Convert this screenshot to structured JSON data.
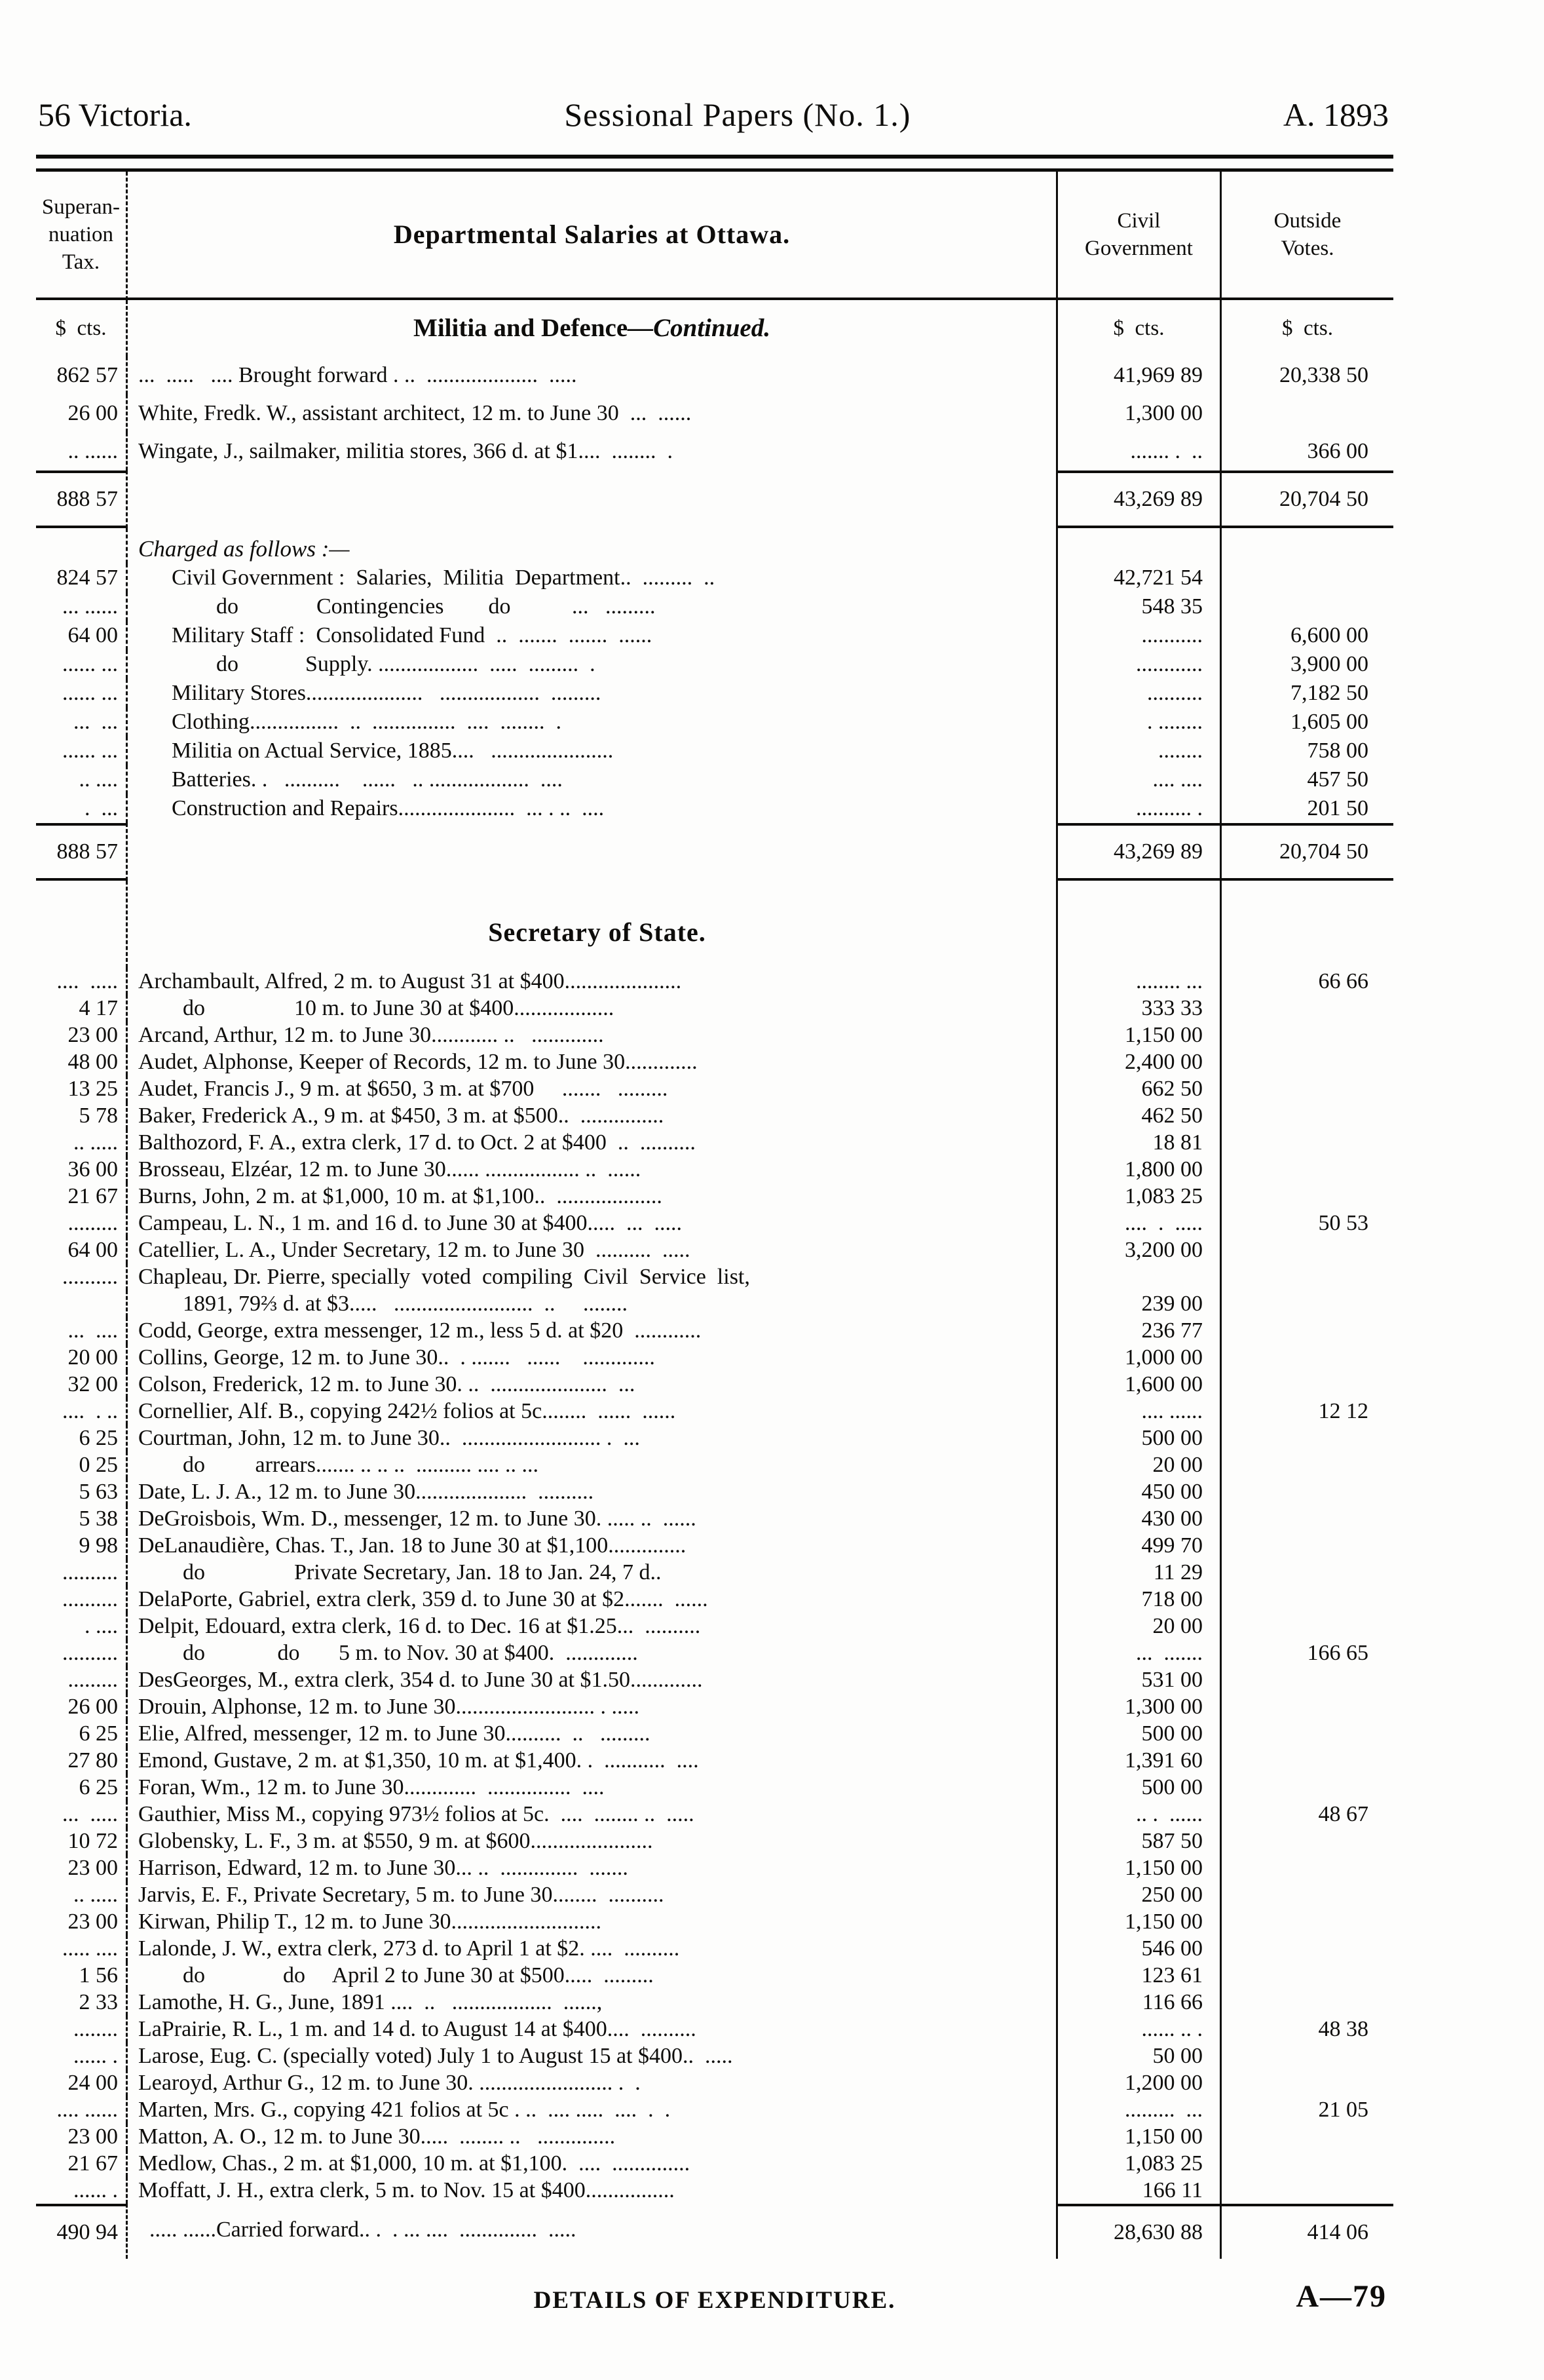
{
  "page": {
    "header_left": "56 Victoria.",
    "header_center": "Sessional Papers (No. 1.)",
    "header_right": "A. 1893",
    "footer_center": "DETAILS OF EXPENDITURE.",
    "footer_right": "A—79"
  },
  "colors": {
    "ink": "#0e0d0b",
    "paper": "#fdfdfc"
  },
  "ledger": {
    "columns": {
      "sup": "Superan-\nnuation\nTax.",
      "desc": "Departmental Salaries at Ottawa.",
      "civil": "Civil\nGovernment",
      "out": "Outside\nVotes."
    },
    "sections": [
      {
        "cls": "mrow",
        "rows": [
          {
            "t": "subhead",
            "s": "$  cts.",
            "d": "Militia and Defence",
            "d2": "—Continued.",
            "c": "$  cts.",
            "o": "$  cts."
          },
          {
            "t": "data",
            "s": "862 57",
            "d": "...  .....   .... Brought forward . ..  ....................  .....",
            "c": "41,969 89",
            "o": "20,338 50"
          },
          {
            "t": "data",
            "s": "26 00",
            "d": "White, Fredk. W., assistant architect, 12 m. to June 30  ...  ......",
            "c": "1,300 00",
            "o": ""
          },
          {
            "t": "data",
            "s": ".. ......",
            "d": "Wingate, J., sailmaker, militia stores, 366 d. at $1....  ........  .",
            "c": "....... .  ..",
            "o": "366 00"
          },
          {
            "t": "total",
            "end": true,
            "s": "888 57",
            "d": "",
            "c": "43,269 89",
            "o": "20,704 50"
          }
        ]
      },
      {
        "cls": "crow",
        "rows": [
          {
            "t": "note",
            "s": "",
            "d": "Charged as follows :—",
            "c": "",
            "o": ""
          },
          {
            "t": "data",
            "s": "824 57",
            "d": "      Civil Government :  Salaries,  Militia  Department..  .........  ..",
            "c": "42,721 54",
            "o": ""
          },
          {
            "t": "data",
            "s": "... ......",
            "d": "              do              Contingencies        do           ...   .........",
            "c": "548 35",
            "o": ""
          },
          {
            "t": "data",
            "s": "64 00",
            "d": "      Military Staff :  Consolidated Fund  ..  .......  .......  ......",
            "c": "...........",
            "o": "6,600 00"
          },
          {
            "t": "data",
            "s": "...... ...",
            "d": "              do            Supply. ..................  .....  .........  .",
            "c": "............",
            "o": "3,900 00"
          },
          {
            "t": "data",
            "s": "...... ...",
            "d": "      Military Stores.....................   ..................  .........",
            "c": "..........",
            "o": "7,182 50"
          },
          {
            "t": "data",
            "s": "...  ...",
            "d": "      Clothing................  ..  ...............  ....  ........  .",
            "c": ". ........",
            "o": "1,605 00"
          },
          {
            "t": "data",
            "s": "...... ...",
            "d": "      Militia on Actual Service, 1885....   ......................",
            "c": "........",
            "o": "758 00"
          },
          {
            "t": "data",
            "s": ".. ....",
            "d": "      Batteries. .   ..........    ......   .. ..................  ....",
            "c": ".... ....",
            "o": "457 50"
          },
          {
            "t": "data",
            "s": ".  ...",
            "d": "      Construction and Repairs.....................  ... . ..  ....",
            "c": ".......... .",
            "o": "201 50"
          },
          {
            "t": "total",
            "end": true,
            "s": "888 57",
            "d": "",
            "c": "43,269 89",
            "o": "20,704 50"
          }
        ]
      },
      {
        "cls": "srow",
        "rows": [
          {
            "t": "title",
            "s": "",
            "d": "Secretary of State.",
            "c": "",
            "o": ""
          },
          {
            "t": "data",
            "s": "....  .....",
            "d": "Archambault, Alfred, 2 m. to August 31 at $400.....................",
            "c": "........ ...",
            "o": "66 66"
          },
          {
            "t": "data",
            "s": "4 17",
            "d": "        do                10 m. to June 30 at $400..................",
            "c": "333 33",
            "o": ""
          },
          {
            "t": "data",
            "s": "23 00",
            "d": "Arcand, Arthur, 12 m. to June 30............ ..   .............",
            "c": "1,150 00",
            "o": ""
          },
          {
            "t": "data",
            "s": "48 00",
            "d": "Audet, Alphonse, Keeper of Records, 12 m. to June 30.............",
            "c": "2,400 00",
            "o": ""
          },
          {
            "t": "data",
            "s": "13 25",
            "d": "Audet, Francis J., 9 m. at $650, 3 m. at $700     .......   .........",
            "c": "662 50",
            "o": ""
          },
          {
            "t": "data",
            "s": "5 78",
            "d": "Baker, Frederick A., 9 m. at $450, 3 m. at $500..  ...............",
            "c": "462 50",
            "o": ""
          },
          {
            "t": "data",
            "s": ".. .....",
            "d": "Balthozord, F. A., extra clerk, 17 d. to Oct. 2 at $400  ..  ..........",
            "c": "18 81",
            "o": ""
          },
          {
            "t": "data",
            "s": "36 00",
            "d": "Brosseau, Elzéar, 12 m. to June 30...... ................. ..  ......",
            "c": "1,800 00",
            "o": ""
          },
          {
            "t": "data",
            "s": "21 67",
            "d": "Burns, John, 2 m. at $1,000, 10 m. at $1,100..  ...................",
            "c": "1,083 25",
            "o": ""
          },
          {
            "t": "data",
            "s": ".........",
            "d": "Campeau, L. N., 1 m. and 16 d. to June 30 at $400.....  ...  .....",
            "c": "....  .  .....",
            "o": "50 53"
          },
          {
            "t": "data",
            "s": "64 00",
            "d": "Catellier, L. A., Under Secretary, 12 m. to June 30  ..........  .....",
            "c": "3,200 00",
            "o": ""
          },
          {
            "t": "data",
            "s": "..........",
            "d": "Chapleau, Dr. Pierre, specially  voted  compiling  Civil  Service  list,",
            "c": "",
            "o": ""
          },
          {
            "t": "data",
            "s": "",
            "d": "        1891, 79⅔ d. at $3.....   .........................  ..     ........",
            "c": "239 00",
            "o": ""
          },
          {
            "t": "data",
            "s": "...  ....",
            "d": "Codd, George, extra messenger, 12 m., less 5 d. at $20  ............",
            "c": "236 77",
            "o": ""
          },
          {
            "t": "data",
            "s": "20 00",
            "d": "Collins, George, 12 m. to June 30..  . .......   ......    .............",
            "c": "1,000 00",
            "o": ""
          },
          {
            "t": "data",
            "s": "32 00",
            "d": "Colson, Frederick, 12 m. to June 30. ..  .....................  ...",
            "c": "1,600 00",
            "o": ""
          },
          {
            "t": "data",
            "s": "....  . ..",
            "d": "Cornellier, Alf. B., copying 242½ folios at 5c........  ......  ......",
            "c": ".... ......",
            "o": "12 12"
          },
          {
            "t": "data",
            "s": "6 25",
            "d": "Courtman, John, 12 m. to June 30..  ......................... .  ...",
            "c": "500 00",
            "o": ""
          },
          {
            "t": "data",
            "s": "0 25",
            "d": "        do         arrears....... .. .. ..  .......... .... .. ...",
            "c": "20 00",
            "o": ""
          },
          {
            "t": "data",
            "s": "5 63",
            "d": "Date, L. J. A., 12 m. to June 30....................  ..........",
            "c": "450 00",
            "o": ""
          },
          {
            "t": "data",
            "s": "5 38",
            "d": "DeGroisbois, Wm. D., messenger, 12 m. to June 30. ..... ..  ......",
            "c": "430 00",
            "o": ""
          },
          {
            "t": "data",
            "s": "9 98",
            "d": "DeLanaudière, Chas. T., Jan. 18 to June 30 at $1,100..............",
            "c": "499 70",
            "o": ""
          },
          {
            "t": "data",
            "s": "..........",
            "d": "        do                Private Secretary, Jan. 18 to Jan. 24, 7 d..",
            "c": "11 29",
            "o": ""
          },
          {
            "t": "data",
            "s": "..........",
            "d": "DelaPorte, Gabriel, extra clerk, 359 d. to June 30 at $2.......  ......",
            "c": "718 00",
            "o": ""
          },
          {
            "t": "data",
            "s": ". ....",
            "d": "Delpit, Edouard, extra clerk, 16 d. to Dec. 16 at $1.25...  ..........",
            "c": "20 00",
            "o": ""
          },
          {
            "t": "data",
            "s": "..........",
            "d": "        do             do       5 m. to Nov. 30 at $400.  .............",
            "c": "...  .......",
            "o": "166 65"
          },
          {
            "t": "data",
            "s": ".........",
            "d": "DesGeorges, M., extra clerk, 354 d. to June 30 at $1.50.............",
            "c": "531 00",
            "o": ""
          },
          {
            "t": "data",
            "s": "26 00",
            "d": "Drouin, Alphonse, 12 m. to June 30......................... . .....",
            "c": "1,300 00",
            "o": ""
          },
          {
            "t": "data",
            "s": "6 25",
            "d": "Elie, Alfred, messenger, 12 m. to June 30..........  ..   .........",
            "c": "500 00",
            "o": ""
          },
          {
            "t": "data",
            "s": "27 80",
            "d": "Emond, Gustave, 2 m. at $1,350, 10 m. at $1,400. .  ...........  ....",
            "c": "1,391 60",
            "o": ""
          },
          {
            "t": "data",
            "s": "6 25",
            "d": "Foran, Wm., 12 m. to June 30.............  ...............  ....",
            "c": "500 00",
            "o": ""
          },
          {
            "t": "data",
            "s": "...  .....",
            "d": "Gauthier, Miss M., copying 973½ folios at 5c.  ....  ........ ..  .....",
            "c": ".. .  ......",
            "o": "48 67"
          },
          {
            "t": "data",
            "s": "10 72",
            "d": "Globensky, L. F., 3 m. at $550, 9 m. at $600......................",
            "c": "587 50",
            "o": ""
          },
          {
            "t": "data",
            "s": "23 00",
            "d": "Harrison, Edward, 12 m. to June 30... ..  ..............  .......",
            "c": "1,150 00",
            "o": ""
          },
          {
            "t": "data",
            "s": ".. .....",
            "d": "Jarvis, E. F., Private Secretary, 5 m. to June 30........  ..........",
            "c": "250 00",
            "o": ""
          },
          {
            "t": "data",
            "s": "23 00",
            "d": "Kirwan, Philip T., 12 m. to June 30...........................",
            "c": "1,150 00",
            "o": ""
          },
          {
            "t": "data",
            "s": "..... ....",
            "d": "Lalonde, J. W., extra clerk, 273 d. to April 1 at $2. ....  ..........",
            "c": "546 00",
            "o": ""
          },
          {
            "t": "data",
            "s": "1 56",
            "d": "        do              do     April 2 to June 30 at $500.....  .........",
            "c": "123 61",
            "o": ""
          },
          {
            "t": "data",
            "s": "2 33",
            "d": "Lamothe, H. G., June, 1891 ....  ..   ..................  ......,",
            "c": "116 66",
            "o": ""
          },
          {
            "t": "data",
            "s": "........",
            "d": "LaPrairie, R. L., 1 m. and 14 d. to August 14 at $400....  ..........",
            "c": "...... .. .",
            "o": "48 38"
          },
          {
            "t": "data",
            "s": "...... .",
            "d": "Larose, Eug. C. (specially voted) July 1 to August 15 at $400..  .....",
            "c": "50 00",
            "o": ""
          },
          {
            "t": "data",
            "s": "24 00",
            "d": "Learoyd, Arthur G., 12 m. to June 30. ........................ .  .",
            "c": "1,200 00",
            "o": ""
          },
          {
            "t": "data",
            "s": ".... ......",
            "d": "Marten, Mrs. G., copying 421 folios at 5c . ..  .... .....  ....  .  .",
            "c": ".........  ...",
            "o": "21 05"
          },
          {
            "t": "data",
            "s": "23 00",
            "d": "Matton, A. O., 12 m. to June 30.....  ........ ..   ..............",
            "c": "1,150 00",
            "o": ""
          },
          {
            "t": "data",
            "s": "21 67",
            "d": "Medlow, Chas., 2 m. at $1,000, 10 m. at $1,100.  ....  ..............",
            "c": "1,083 25",
            "o": ""
          },
          {
            "t": "data",
            "s": "...... .",
            "d": "Moffatt, J. H., extra clerk, 5 m. to Nov. 15 at $400................",
            "c": "166 11",
            "o": ""
          },
          {
            "t": "total",
            "s": "490 94",
            "d": "  ..... ......Carried forward.. .  . ... ....  ..............  .....",
            "c": "28,630 88",
            "o": "414 06"
          }
        ]
      }
    ]
  }
}
